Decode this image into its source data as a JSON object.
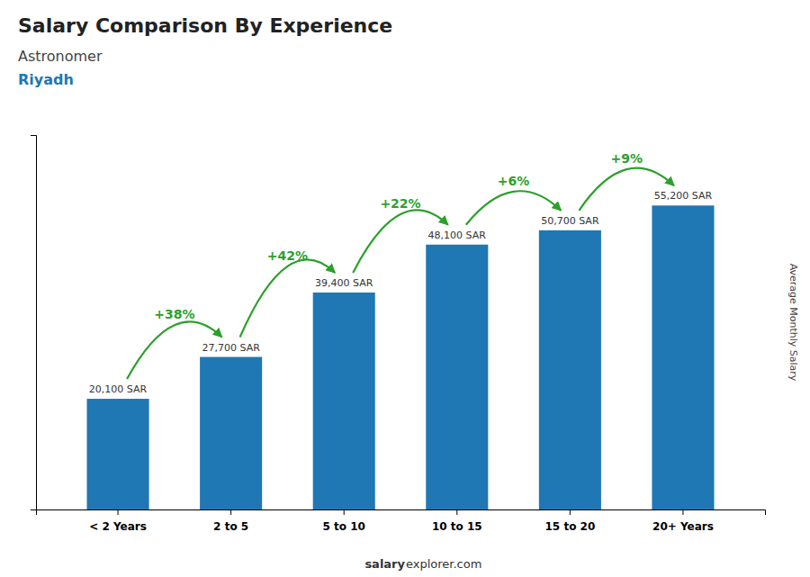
{
  "chart_data": {
    "type": "bar",
    "title": "Salary Comparison By Experience",
    "subtitle": "Astronomer",
    "location": "Riyadh",
    "categories": [
      "< 2 Years",
      "2 to 5",
      "5 to 10",
      "10 to 15",
      "15 to 20",
      "20+ Years"
    ],
    "values": [
      20100,
      27700,
      39400,
      48100,
      50700,
      55200
    ],
    "data_labels": true,
    "value_labels": [
      "20,100 SAR",
      "27,700 SAR",
      "39,400 SAR",
      "48,100 SAR",
      "50,700 SAR",
      "55,200 SAR"
    ],
    "annotations": [
      "+38%",
      "+42%",
      "+22%",
      "+6%",
      "+9%"
    ],
    "ylabel": "Average Monthly Salary",
    "ylim": [
      0,
      68000
    ],
    "tick_labels": "x",
    "grid": false,
    "footer": [
      "salary",
      "explorer.com"
    ]
  }
}
